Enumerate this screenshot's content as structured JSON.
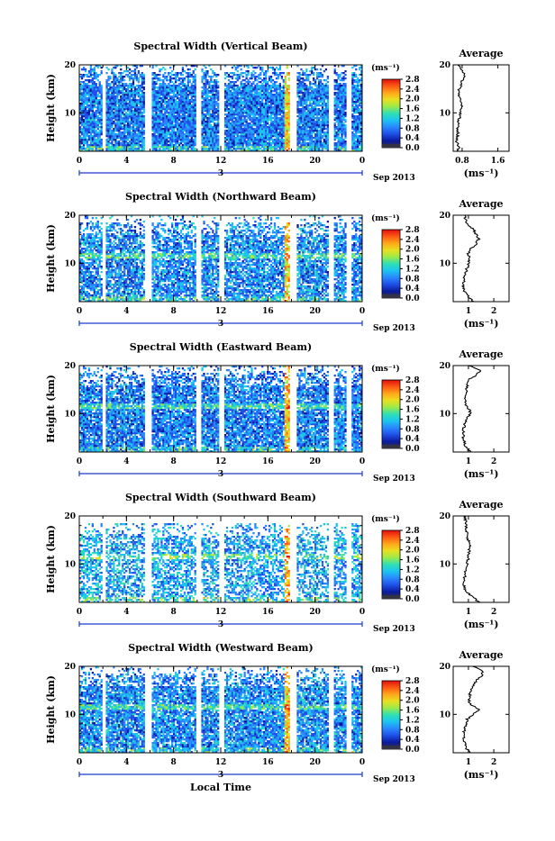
{
  "chart_data": {
    "type": "heatmap",
    "x_axis_title": "Local Time",
    "date_label": "Sep 2013",
    "day_label": "3",
    "x_ticks": [
      "0",
      "4",
      "8",
      "12",
      "16",
      "20",
      "0"
    ],
    "xlim": [
      0,
      24
    ],
    "ylim": [
      2,
      20
    ],
    "y_ticks": [
      "10",
      "20"
    ],
    "y_tick_values": [
      10,
      20
    ],
    "ylabel": "Height (km)",
    "colorbar": {
      "unit": "(ms⁻¹)",
      "ticks": [
        "2.8",
        "2.4",
        "2.0",
        "1.6",
        "1.2",
        "0.8",
        "0.4",
        "0.0"
      ],
      "range": [
        0,
        2.8
      ],
      "colors": [
        "#333344",
        "#0a1aa0",
        "#1f4fe6",
        "#2a86ff",
        "#1cc4f0",
        "#2ee0b5",
        "#9aea4a",
        "#e8e020",
        "#ffa81a",
        "#ff5a12",
        "#e01010"
      ]
    },
    "average_title": "Average",
    "average_xlabel": "(ms⁻¹)",
    "data_gaps_local_time": [
      [
        1.9,
        2.3
      ],
      [
        5.5,
        6.1
      ],
      [
        9.9,
        10.4
      ],
      [
        11.8,
        12.3
      ],
      [
        17.9,
        18.5
      ],
      [
        21.1,
        21.6
      ],
      [
        22.6,
        23.1
      ]
    ],
    "panels": [
      {
        "title": "Spectral Width (Vertical Beam)",
        "avg_xticks": [
          "0.8",
          "1.6"
        ],
        "avg_xtick_values": [
          0.8,
          1.6
        ],
        "avg_xlim": [
          0.6,
          1.85
        ],
        "profile": {
          "height_km": [
            2,
            3,
            4,
            5,
            6,
            7,
            8,
            9,
            10,
            11,
            12,
            13,
            14,
            15,
            16,
            17,
            18,
            19,
            20
          ],
          "width_ms": [
            0.7,
            0.72,
            0.68,
            0.7,
            0.71,
            0.7,
            0.72,
            0.74,
            0.76,
            0.8,
            0.78,
            0.75,
            0.72,
            0.74,
            0.78,
            0.82,
            0.86,
            0.8,
            0.72
          ]
        }
      },
      {
        "title": "Spectral Width (Northward Beam)",
        "avg_xticks": [
          "1",
          "2"
        ],
        "avg_xtick_values": [
          1,
          2
        ],
        "avg_xlim": [
          0.4,
          2.6
        ],
        "profile": {
          "height_km": [
            2,
            3,
            4,
            5,
            6,
            7,
            8,
            9,
            10,
            11,
            12,
            13,
            14,
            15,
            16,
            17,
            18,
            19,
            20
          ],
          "width_ms": [
            1.2,
            1.0,
            0.85,
            0.8,
            0.82,
            0.85,
            0.88,
            0.95,
            1.0,
            1.05,
            1.0,
            1.1,
            1.3,
            1.4,
            1.3,
            1.2,
            1.0,
            0.9,
            0.85
          ]
        }
      },
      {
        "title": "Spectral Width (Eastward Beam)",
        "avg_xticks": [
          "1",
          "2"
        ],
        "avg_xtick_values": [
          1,
          2
        ],
        "avg_xlim": [
          0.4,
          2.6
        ],
        "profile": {
          "height_km": [
            2,
            3,
            4,
            5,
            6,
            7,
            8,
            9,
            10,
            11,
            12,
            13,
            14,
            15,
            16,
            17,
            18,
            19,
            20
          ],
          "width_ms": [
            1.1,
            0.9,
            0.85,
            0.8,
            0.8,
            0.82,
            0.85,
            0.95,
            1.1,
            1.0,
            0.9,
            0.88,
            0.9,
            0.92,
            0.95,
            1.0,
            1.3,
            1.5,
            1.0
          ]
        }
      },
      {
        "title": "Spectral Width (Southward Beam)",
        "avg_xticks": [
          "1",
          "2"
        ],
        "avg_xtick_values": [
          1,
          2
        ],
        "avg_xlim": [
          0.4,
          2.6
        ],
        "profile": {
          "height_km": [
            2,
            3,
            4,
            5,
            6,
            7,
            8,
            9,
            10,
            11,
            12,
            13,
            14,
            15,
            16,
            17,
            18,
            19,
            20
          ],
          "width_ms": [
            1.4,
            1.2,
            0.95,
            0.85,
            0.82,
            0.84,
            0.88,
            0.92,
            0.95,
            0.98,
            1.0,
            1.02,
            1.05,
            1.0,
            0.95,
            0.92,
            0.9,
            0.88,
            0.85
          ]
        }
      },
      {
        "title": "Spectral Width (Westward Beam)",
        "avg_xticks": [
          "1",
          "2"
        ],
        "avg_xtick_values": [
          1,
          2
        ],
        "avg_xlim": [
          0.4,
          2.6
        ],
        "profile": {
          "height_km": [
            2,
            3,
            4,
            5,
            6,
            7,
            8,
            9,
            10,
            11,
            12,
            13,
            14,
            15,
            16,
            17,
            18,
            19,
            20
          ],
          "width_ms": [
            1.1,
            0.9,
            0.85,
            0.8,
            0.82,
            0.85,
            0.9,
            0.95,
            1.2,
            1.4,
            1.1,
            1.0,
            1.05,
            1.1,
            1.2,
            1.3,
            1.5,
            1.6,
            1.2
          ]
        }
      }
    ]
  }
}
